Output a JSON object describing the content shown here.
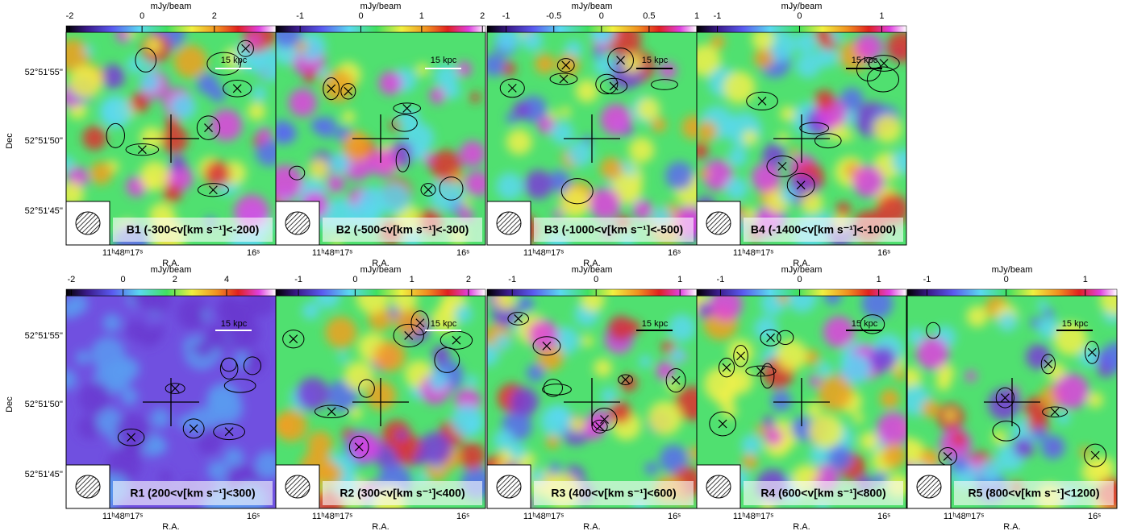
{
  "panels": [
    {
      "label": "B1 (-300<v[km s⁻¹]<-200)",
      "colorbar_label": "mJy/beam",
      "clim": [
        -2.1,
        3.7
      ],
      "cticks": [
        -2,
        0,
        2
      ],
      "scale_bar": "15 kpc",
      "xticks": [
        "11ʰ48ᵐ17ˢ",
        "16ˢ"
      ],
      "xlabel": "R.A."
    },
    {
      "label": "B2 (-500<v[km s⁻¹]<-300)",
      "colorbar_label": "mJy/beam",
      "clim": [
        -1.4,
        2.05
      ],
      "cticks": [
        -1,
        0,
        1,
        2
      ],
      "scale_bar": "15 kpc",
      "xticks": [
        "11ʰ48ᵐ17ˢ",
        "16ˢ"
      ],
      "xlabel": "R.A."
    },
    {
      "label": "B3 (-1000<v[km s⁻¹]<-500)",
      "colorbar_label": "mJy/beam",
      "clim": [
        -1.2,
        1.0
      ],
      "cticks": [
        -1,
        -0.5,
        0,
        0.5,
        1
      ],
      "scale_bar": "15 kpc",
      "xticks": [
        "11ʰ48ᵐ17ˢ",
        "16ˢ"
      ],
      "xlabel": "R.A."
    },
    {
      "label": "B4 (-1400<v[km s⁻¹]<-1000)",
      "colorbar_label": "mJy/beam",
      "clim": [
        -1.25,
        1.3
      ],
      "cticks": [
        -1,
        0,
        1
      ],
      "scale_bar": "15 kpc",
      "xticks": [
        "11ʰ48ᵐ17ˢ",
        "16ˢ"
      ],
      "xlabel": "R.A."
    },
    {
      "label": "R1 (200<v[km s⁻¹]<300)",
      "colorbar_label": "mJy/beam",
      "clim": [
        -2.2,
        5.9
      ],
      "cticks": [
        -2,
        0,
        2,
        4
      ],
      "scale_bar": "15 kpc",
      "xticks": [
        "11ʰ48ᵐ17ˢ",
        "16ˢ"
      ],
      "xlabel": "R.A."
    },
    {
      "label": "R2 (300<v[km s⁻¹]<400)",
      "colorbar_label": "mJy/beam",
      "clim": [
        -1.4,
        2.3
      ],
      "cticks": [
        -1,
        0,
        1,
        2
      ],
      "scale_bar": "15 kpc",
      "xticks": [
        "11ʰ48ᵐ17ˢ",
        "16ˢ"
      ],
      "xlabel": "R.A."
    },
    {
      "label": "R3 (400<v[km s⁻¹]<600)",
      "colorbar_label": "mJy/beam",
      "clim": [
        -1.3,
        1.2
      ],
      "cticks": [
        -1,
        0,
        1
      ],
      "scale_bar": "15 kpc",
      "xticks": [
        "11ʰ48ᵐ17ˢ",
        "16ˢ"
      ],
      "xlabel": "R.A."
    },
    {
      "label": "R4 (600<v[km s⁻¹]<800)",
      "colorbar_label": "mJy/beam",
      "clim": [
        -1.3,
        1.35
      ],
      "cticks": [
        -1,
        0,
        1
      ],
      "scale_bar": "15 kpc",
      "xticks": [
        "11ʰ48ᵐ17ˢ",
        "16ˢ"
      ],
      "xlabel": "R.A."
    },
    {
      "label": "R5 (800<v[km s⁻¹]<1200)",
      "colorbar_label": "mJy/beam",
      "clim": [
        -1.25,
        1.4
      ],
      "cticks": [
        -1,
        0,
        1
      ],
      "scale_bar": "15 kpc",
      "xticks": [
        "11ʰ48ᵐ17ˢ",
        "16ˢ"
      ],
      "xlabel": "R.A."
    }
  ],
  "yaxis": {
    "ticks": [
      "52°51'55''",
      "52°51'50''",
      "52°51'45''"
    ],
    "label": "Dec"
  }
}
